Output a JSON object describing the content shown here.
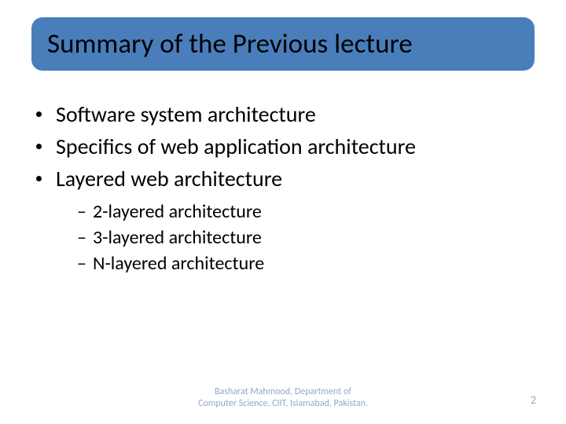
{
  "title": {
    "text": "Summary of the Previous lecture",
    "background_color": "#4a7ebb",
    "text_color": "#000000",
    "fontsize": 35
  },
  "bullets": {
    "main_fontsize": 28,
    "sub_fontsize": 24,
    "items": [
      {
        "text": "Software system architecture"
      },
      {
        "text": "Specifics of web application architecture"
      },
      {
        "text": "Layered web architecture"
      }
    ],
    "sub_items": [
      {
        "text": "2-layered architecture"
      },
      {
        "text": "3-layered architecture"
      },
      {
        "text": "N-layered architecture"
      }
    ]
  },
  "footer": {
    "line1": "Basharat Mahmood, Department of",
    "line2": "Computer Science, CIIT, Islamabad, Pakistan.",
    "color": "#91a7c6",
    "fontsize": 12
  },
  "page_number": {
    "value": "2",
    "color": "#91a7c6",
    "fontsize": 14
  },
  "background_color": "#ffffff"
}
